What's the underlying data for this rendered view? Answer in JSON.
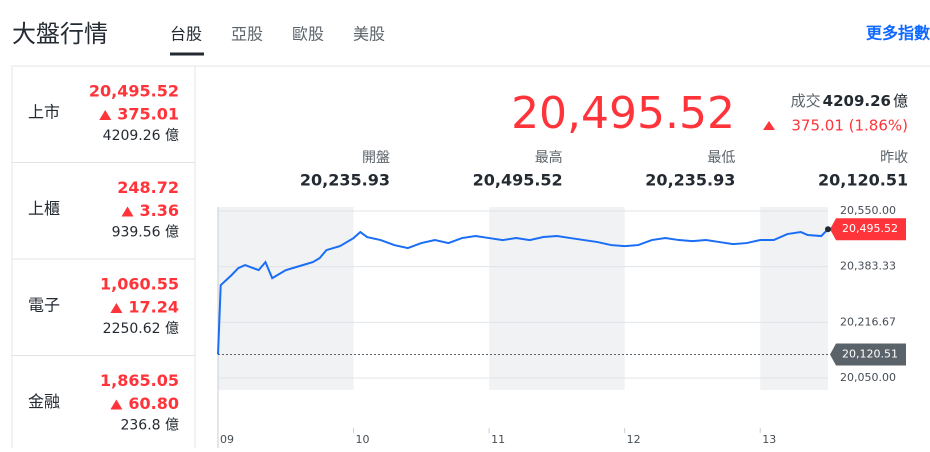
{
  "header": {
    "title": "大盤行情",
    "tabs": [
      "台股",
      "亞股",
      "歐股",
      "美股"
    ],
    "more": "更多指數"
  },
  "sidebar": [
    {
      "name": "上市",
      "price": "20,495.52",
      "change": "375.01",
      "volume": "4209.26 億"
    },
    {
      "name": "上櫃",
      "price": "248.72",
      "change": "3.36",
      "volume": "939.56 億"
    },
    {
      "name": "電子",
      "price": "1,060.55",
      "change": "17.24",
      "volume": "2250.62 億"
    },
    {
      "name": "金融",
      "price": "1,865.05",
      "change": "60.80",
      "volume": "236.8 億"
    }
  ],
  "summary": {
    "price": "20,495.52",
    "volume_label": "成交",
    "volume": "4209.26",
    "volume_unit": "億",
    "change": "375.01 (1.86%)",
    "stats": [
      {
        "label": "開盤",
        "value": "20,235.93"
      },
      {
        "label": "最高",
        "value": "20,495.52"
      },
      {
        "label": "最低",
        "value": "20,235.93"
      },
      {
        "label": "昨收",
        "value": "20,120.51"
      }
    ]
  },
  "chart_data": {
    "type": "line",
    "x": [
      9.0,
      9.02,
      9.1,
      9.15,
      9.2,
      9.3,
      9.35,
      9.4,
      9.5,
      9.6,
      9.7,
      9.75,
      9.8,
      9.9,
      10.0,
      10.05,
      10.1,
      10.2,
      10.3,
      10.4,
      10.5,
      10.6,
      10.7,
      10.8,
      10.9,
      11.0,
      11.1,
      11.2,
      11.3,
      11.4,
      11.5,
      11.6,
      11.7,
      11.8,
      11.9,
      12.0,
      12.1,
      12.2,
      12.3,
      12.4,
      12.5,
      12.6,
      12.7,
      12.8,
      12.9,
      13.0,
      13.1,
      13.2,
      13.3,
      13.35,
      13.45,
      13.5
    ],
    "series": [
      {
        "color": "#1a6ef5",
        "values": [
          20120.51,
          20328,
          20358,
          20379,
          20388,
          20373,
          20397,
          20349,
          20373,
          20385,
          20397,
          20409,
          20433,
          20445,
          20469,
          20487,
          20472,
          20463,
          20448,
          20439,
          20454,
          20463,
          20454,
          20469,
          20475,
          20469,
          20463,
          20469,
          20463,
          20472,
          20475,
          20469,
          20463,
          20457,
          20448,
          20445,
          20448,
          20463,
          20469,
          20463,
          20460,
          20463,
          20457,
          20451,
          20454,
          20463,
          20463,
          20481,
          20487,
          20478,
          20475,
          20495.52
        ]
      }
    ],
    "xlim": [
      9,
      13.5
    ],
    "xticks": [
      {
        "value": 9,
        "label": "09"
      },
      10,
      11,
      12,
      13
    ],
    "ylim": [
      20050,
      20550
    ],
    "yticks": [
      {
        "value": 20050,
        "label": "20,050.00"
      },
      {
        "value": 20216.67,
        "label": "20,216.67"
      },
      {
        "value": 20383.33,
        "label": "20,383.33"
      },
      {
        "value": 20550,
        "label": "20,550.00"
      }
    ],
    "annotations": [
      {
        "value": 20495.52,
        "label": "20,495.52",
        "color": "#ff333a"
      },
      {
        "value": 20120.51,
        "label": "20,120.51",
        "color": "#5b636a"
      }
    ]
  }
}
